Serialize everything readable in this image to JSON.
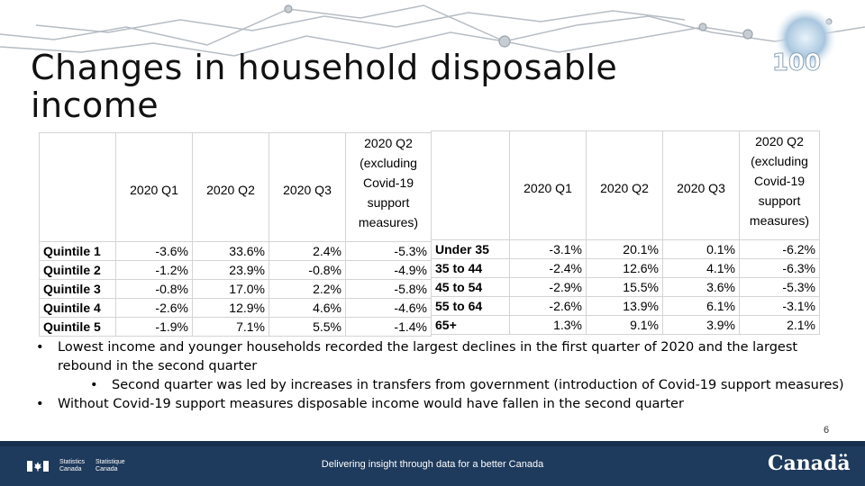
{
  "title": "Changes in household disposable income",
  "left_table": {
    "headers": [
      "",
      "2020 Q1",
      "2020 Q2",
      "2020 Q3",
      "2020 Q2 (excluding Covid-19 support measures)"
    ],
    "rows": [
      {
        "label": "Quintile 1",
        "values": [
          "-3.6%",
          "33.6%",
          "2.4%",
          "-5.3%"
        ]
      },
      {
        "label": "Quintile 2",
        "values": [
          "-1.2%",
          "23.9%",
          "-0.8%",
          "-4.9%"
        ]
      },
      {
        "label": "Quintile 3",
        "values": [
          "-0.8%",
          "17.0%",
          "2.2%",
          "-5.8%"
        ]
      },
      {
        "label": "Quintile 4",
        "values": [
          "-2.6%",
          "12.9%",
          "4.6%",
          "-4.6%"
        ]
      },
      {
        "label": "Quintile 5",
        "values": [
          "-1.9%",
          "7.1%",
          "5.5%",
          "-1.4%"
        ]
      }
    ]
  },
  "right_table": {
    "headers": [
      "",
      "2020 Q1",
      "2020 Q2",
      "2020 Q3",
      "2020 Q2 (excluding Covid-19 support measures)"
    ],
    "rows": [
      {
        "label": "Under 35",
        "values": [
          "-3.1%",
          "20.1%",
          "0.1%",
          "-6.2%"
        ]
      },
      {
        "label": "35 to 44",
        "values": [
          "-2.4%",
          "12.6%",
          "4.1%",
          "-6.3%"
        ]
      },
      {
        "label": "45 to 54",
        "values": [
          "-2.9%",
          "15.5%",
          "3.6%",
          "-5.3%"
        ]
      },
      {
        "label": "55 to 64",
        "values": [
          "-2.6%",
          "13.9%",
          "6.1%",
          "-3.1%"
        ]
      },
      {
        "label": "65+",
        "values": [
          "1.3%",
          "9.1%",
          "3.9%",
          "2.1%"
        ]
      }
    ]
  },
  "bullets": {
    "b1": "Lowest income and younger households recorded the largest declines in the first quarter of 2020 and the largest rebound in the second quarter",
    "b1_sub": "Second quarter was led by increases in transfers from government (introduction of Covid-19 support measures)",
    "b2": "Without Covid-19 support measures disposable income would have fallen in the second quarter"
  },
  "page_number": "6",
  "badge": "100",
  "footer": {
    "agency_en_1": "Statistics",
    "agency_en_2": "Canada",
    "agency_fr_1": "Statistique",
    "agency_fr_2": "Canada",
    "tagline": "Delivering insight through data for a better Canada",
    "wordmark": "Canadä"
  },
  "colors": {
    "footer": "#1e3a5c",
    "network": "#9aa3ad"
  }
}
